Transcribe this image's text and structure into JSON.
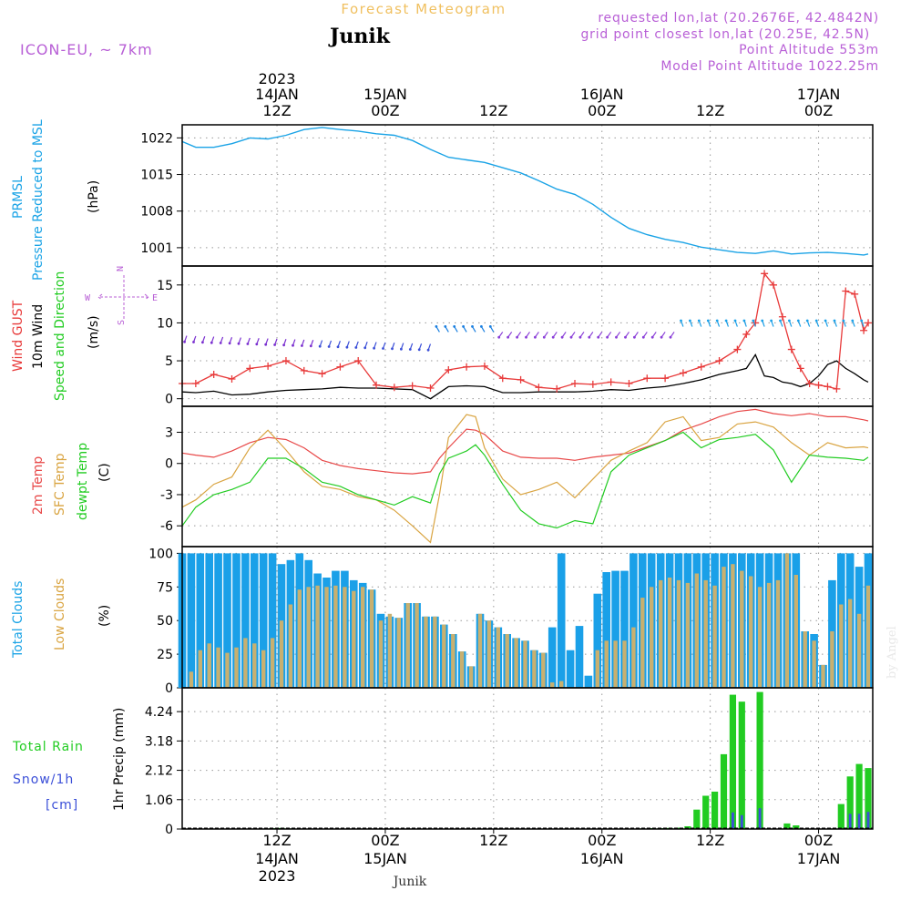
{
  "header": {
    "title": "Forecast Meteogram",
    "location": "Junik",
    "model": "ICON-EU, ~ 7km",
    "requested": "requested lon,lat (20.2676E, 42.4842N)",
    "gridpoint": "grid point closest lon,lat (20.25E, 42.5N)",
    "point_alt": "Point Altitude 553m",
    "model_alt": "Model Point Altitude 1022.25m",
    "footer_location": "Junik",
    "watermark": "by Angel"
  },
  "time_axis": {
    "top": [
      {
        "line1": "2023",
        "line2": "14JAN",
        "line3": "12Z",
        "hour": 15
      },
      {
        "line1": "",
        "line2": "15JAN",
        "line3": "00Z",
        "hour": 27
      },
      {
        "line1": "",
        "line2": "",
        "line3": "12Z",
        "hour": 39
      },
      {
        "line1": "",
        "line2": "16JAN",
        "line3": "00Z",
        "hour": 51
      },
      {
        "line1": "",
        "line2": "",
        "line3": "12Z",
        "hour": 63
      },
      {
        "line1": "",
        "line2": "17JAN",
        "line3": "00Z",
        "hour": 75
      }
    ],
    "bottom": [
      {
        "line1": "12Z",
        "line2": "14JAN",
        "line3": "2023",
        "hour": 15
      },
      {
        "line1": "00Z",
        "line2": "15JAN",
        "line3": "",
        "hour": 27
      },
      {
        "line1": "12Z",
        "line2": "",
        "line3": "",
        "hour": 39
      },
      {
        "line1": "00Z",
        "line2": "16JAN",
        "line3": "",
        "hour": 51
      },
      {
        "line1": "12Z",
        "line2": "",
        "line3": "",
        "hour": 63
      },
      {
        "line1": "00Z",
        "line2": "17JAN",
        "line3": "",
        "hour": 75
      }
    ],
    "hour_range": [
      4.5,
      81
    ]
  },
  "panels": {
    "pressure": {
      "label1": "PRMSL",
      "label2": "Pressure Reduced to MSL",
      "units": "(hPa)",
      "ticks": [
        "1022",
        "1015",
        "1008",
        "1001"
      ],
      "tick_values": [
        1022,
        1015,
        1008,
        1001
      ],
      "ylim": [
        997.5,
        1024.5
      ]
    },
    "wind": {
      "label_gust": "Wind GUST",
      "label_wind": "10m Wind",
      "label_dir": "Speed and Direction",
      "units": "(m/s)",
      "ticks": [
        "15",
        "10",
        "5",
        "0"
      ],
      "tick_values": [
        15,
        10,
        5,
        0
      ],
      "ylim": [
        -1,
        17.5
      ],
      "compass": {
        "n": "N",
        "s": "S",
        "w": "W",
        "e": "E"
      }
    },
    "temp": {
      "label_2m": "2m Temp",
      "label_sfc": "SFC Temp",
      "label_dew": "dewpt Temp",
      "units": "(C)",
      "ticks": [
        "3",
        "0",
        "-3",
        "-6"
      ],
      "tick_values": [
        3,
        0,
        -3,
        -6
      ],
      "ylim": [
        -8,
        5.5
      ]
    },
    "clouds": {
      "label_total": "Total Clouds",
      "label_low": "Low Clouds",
      "units": "(%)",
      "ticks": [
        "100",
        "75",
        "50",
        "25",
        "0"
      ],
      "tick_values": [
        100,
        75,
        50,
        25,
        0
      ],
      "ylim": [
        0,
        105
      ]
    },
    "precip": {
      "label_rain": "Total  Rain",
      "label_snow": "Snow/1h",
      "label_cm": "[cm]",
      "units": "1hr Precip (mm)",
      "ticks": [
        "4.24",
        "3.18",
        "2.12",
        "1.06",
        "0"
      ],
      "tick_values": [
        4.24,
        3.18,
        2.12,
        1.06,
        0
      ],
      "ylim": [
        0,
        5.1
      ]
    }
  },
  "colors": {
    "pressure": "#1aa3e6",
    "gust": "#e83a3a",
    "wind": "#000000",
    "t2m": "#e84848",
    "sfc": "#d9a441",
    "dew": "#22cc22",
    "total_cloud": "#1aa0e8",
    "low_cloud": "#c8b070",
    "rain": "#22cc22",
    "snow": "#3b4fd8",
    "label_purple": "#b85fd6",
    "title_gold": "#f0c060"
  },
  "chart_data": [
    {
      "type": "line",
      "title": "PRMSL",
      "ylabel": "(hPa)",
      "x": [
        4.5,
        6,
        8,
        10,
        12,
        14,
        16,
        18,
        20,
        22,
        24,
        26,
        28,
        30,
        32,
        34,
        36,
        38,
        40,
        42,
        44,
        46,
        48,
        50,
        52,
        54,
        56,
        58,
        60,
        62,
        64,
        66,
        68,
        70,
        72,
        74,
        76,
        78,
        80,
        80.5
      ],
      "series": [
        {
          "name": "PRMSL",
          "values": [
            1021.3,
            1020.2,
            1020.2,
            1020.9,
            1022,
            1021.8,
            1022.5,
            1023.6,
            1024.0,
            1023.6,
            1023.3,
            1022.8,
            1022.5,
            1021.5,
            1019.8,
            1018.3,
            1017.8,
            1017.3,
            1016.3,
            1015.3,
            1013.8,
            1012.2,
            1011.2,
            1009.3,
            1006.8,
            1004.7,
            1003.5,
            1002.6,
            1002.0,
            1001.1,
            1000.6,
            1000.1,
            999.9,
            1000.4,
            999.8,
            1000.0,
            1000.1,
            999.9,
            999.6,
            999.8
          ]
        }
      ]
    },
    {
      "type": "line",
      "title": "Wind",
      "ylabel": "(m/s)",
      "x": [
        4.5,
        6,
        8,
        10,
        12,
        14,
        16,
        18,
        20,
        22,
        24,
        26,
        28,
        30,
        32,
        34,
        36,
        38,
        40,
        42,
        44,
        46,
        48,
        50,
        52,
        54,
        56,
        58,
        60,
        62,
        64,
        66,
        67,
        68,
        69,
        70,
        71,
        72,
        73,
        74,
        75,
        76,
        77,
        78,
        79,
        80,
        80.5
      ],
      "series": [
        {
          "name": "Wind GUST",
          "values": [
            2.0,
            2.0,
            3.2,
            2.6,
            4.0,
            4.3,
            5.0,
            3.7,
            3.3,
            4.2,
            5.0,
            1.8,
            1.5,
            1.7,
            1.4,
            3.8,
            4.2,
            4.3,
            2.7,
            2.5,
            1.5,
            1.3,
            2.0,
            1.9,
            2.2,
            2.0,
            2.7,
            2.7,
            3.4,
            4.2,
            5.0,
            6.5,
            8.5,
            10.0,
            16.5,
            15.0,
            10.8,
            6.5,
            4.0,
            2.0,
            1.8,
            1.6,
            1.3,
            14.2,
            13.8,
            9.0,
            10.0
          ]
        },
        {
          "name": "10m Wind",
          "values": [
            0.9,
            0.8,
            1.0,
            0.5,
            0.6,
            0.9,
            1.1,
            1.2,
            1.3,
            1.5,
            1.4,
            1.4,
            1.3,
            1.2,
            0.0,
            1.6,
            1.7,
            1.6,
            0.8,
            0.8,
            0.9,
            0.9,
            0.9,
            1.0,
            1.2,
            1.1,
            1.4,
            1.6,
            2.0,
            2.5,
            3.2,
            3.7,
            4.0,
            5.8,
            3.0,
            2.8,
            2.2,
            2.0,
            1.6,
            2.0,
            3.0,
            4.5,
            5.0,
            4.0,
            3.3,
            2.5,
            2.2
          ]
        }
      ]
    },
    {
      "type": "line",
      "title": "Temperature",
      "ylabel": "(C)",
      "x": [
        4.5,
        6,
        8,
        10,
        12,
        14,
        16,
        18,
        20,
        22,
        24,
        26,
        28,
        30,
        32,
        33,
        34,
        36,
        37,
        38,
        40,
        42,
        44,
        46,
        48,
        50,
        52,
        54,
        56,
        58,
        60,
        62,
        64,
        66,
        68,
        70,
        72,
        74,
        76,
        78,
        80,
        80.5
      ],
      "series": [
        {
          "name": "2m Temp",
          "values": [
            1.0,
            0.8,
            0.6,
            1.2,
            2.0,
            2.5,
            2.3,
            1.5,
            0.3,
            -0.2,
            -0.5,
            -0.7,
            -0.9,
            -1.0,
            -0.8,
            0.5,
            1.5,
            3.3,
            3.2,
            2.8,
            1.2,
            0.6,
            0.5,
            0.5,
            0.3,
            0.6,
            0.8,
            1.0,
            1.6,
            2.2,
            3.2,
            3.8,
            4.5,
            5.0,
            5.2,
            4.8,
            4.6,
            4.8,
            4.5,
            4.5,
            4.2,
            4.1
          ]
        },
        {
          "name": "SFC Temp",
          "values": [
            -4.2,
            -3.5,
            -2.0,
            -1.3,
            1.5,
            3.2,
            1.3,
            -0.8,
            -2.2,
            -2.5,
            -3.2,
            -3.5,
            -4.5,
            -6.0,
            -7.6,
            -3.0,
            2.5,
            4.7,
            4.5,
            1.5,
            -1.5,
            -3.0,
            -2.5,
            -1.8,
            -3.3,
            -1.5,
            0.3,
            1.2,
            2.0,
            4.0,
            4.5,
            2.2,
            2.5,
            3.8,
            4.0,
            3.5,
            2.0,
            0.8,
            2.0,
            1.5,
            1.6,
            1.5
          ]
        },
        {
          "name": "dewpt Temp",
          "values": [
            -6.0,
            -4.2,
            -3.0,
            -2.5,
            -1.8,
            0.5,
            0.5,
            -0.5,
            -1.8,
            -2.2,
            -3.0,
            -3.5,
            -4.0,
            -3.2,
            -3.8,
            -1.0,
            0.5,
            1.2,
            1.8,
            0.8,
            -2.0,
            -4.5,
            -5.8,
            -6.2,
            -5.5,
            -5.8,
            -0.8,
            0.8,
            1.5,
            2.2,
            3.0,
            1.5,
            2.3,
            2.5,
            2.8,
            1.3,
            -1.8,
            0.8,
            0.6,
            0.5,
            0.3,
            0.6
          ]
        }
      ]
    },
    {
      "type": "bar",
      "title": "Clouds",
      "ylabel": "(%)",
      "x": [
        4.5,
        5.5,
        6.5,
        7.5,
        8.5,
        9.5,
        10.5,
        11.5,
        12.5,
        13.5,
        14.5,
        15.5,
        16.5,
        17.5,
        18.5,
        19.5,
        20.5,
        21.5,
        22.5,
        23.5,
        24.5,
        25.5,
        26.5,
        27.5,
        28.5,
        29.5,
        30.5,
        31.5,
        32.5,
        33.5,
        34.5,
        35.5,
        36.5,
        37.5,
        38.5,
        39.5,
        40.5,
        41.5,
        42.5,
        43.5,
        44.5,
        45.5,
        46.5,
        47.5,
        48.5,
        49.5,
        50.5,
        51.5,
        52.5,
        53.5,
        54.5,
        55.5,
        56.5,
        57.5,
        58.5,
        59.5,
        60.5,
        61.5,
        62.5,
        63.5,
        64.5,
        65.5,
        66.5,
        67.5,
        68.5,
        69.5,
        70.5,
        71.5,
        72.5,
        73.5,
        74.5,
        75.5,
        76.5,
        77.5,
        78.5,
        79.5,
        80.5
      ],
      "series": [
        {
          "name": "Total Clouds",
          "values": [
            100,
            100,
            100,
            100,
            100,
            100,
            100,
            100,
            100,
            100,
            100,
            92,
            95,
            100,
            95,
            85,
            82,
            87,
            87,
            80,
            78,
            73,
            55,
            53,
            52,
            63,
            63,
            53,
            53,
            47,
            40,
            27,
            16,
            55,
            50,
            45,
            40,
            37,
            35,
            28,
            26,
            45,
            100,
            28,
            46,
            9,
            70,
            86,
            87,
            87,
            100,
            100,
            100,
            100,
            100,
            100,
            100,
            100,
            100,
            100,
            100,
            100,
            100,
            100,
            100,
            100,
            100,
            100,
            100,
            42,
            40,
            17,
            80,
            100,
            100,
            90,
            100
          ]
        },
        {
          "name": "Low Clouds",
          "values": [
            0,
            12,
            28,
            33,
            30,
            26,
            30,
            37,
            33,
            28,
            37,
            50,
            62,
            73,
            75,
            76,
            75,
            76,
            75,
            72,
            75,
            73,
            50,
            55,
            52,
            63,
            63,
            53,
            53,
            47,
            40,
            27,
            16,
            55,
            50,
            45,
            40,
            37,
            35,
            28,
            26,
            4,
            5,
            0,
            0,
            0,
            28,
            35,
            35,
            35,
            45,
            67,
            75,
            80,
            82,
            80,
            78,
            85,
            80,
            76,
            90,
            92,
            87,
            83,
            75,
            78,
            80,
            100,
            84,
            42,
            35,
            17,
            42,
            62,
            66,
            55,
            76
          ]
        }
      ]
    },
    {
      "type": "bar",
      "title": "1hr Precip",
      "ylabel": "1hr Precip (mm)",
      "x": [
        4.5,
        5.5,
        6.5,
        7.5,
        8.5,
        9.5,
        10.5,
        11.5,
        12.5,
        13.5,
        14.5,
        15.5,
        16.5,
        17.5,
        18.5,
        19.5,
        20.5,
        21.5,
        22.5,
        23.5,
        24.5,
        25.5,
        26.5,
        27.5,
        28.5,
        29.5,
        30.5,
        31.5,
        32.5,
        33.5,
        34.5,
        35.5,
        36.5,
        37.5,
        38.5,
        39.5,
        40.5,
        41.5,
        42.5,
        43.5,
        44.5,
        45.5,
        46.5,
        47.5,
        48.5,
        49.5,
        50.5,
        51.5,
        52.5,
        53.5,
        54.5,
        55.5,
        56.5,
        57.5,
        58.5,
        59.5,
        60.5,
        61.5,
        62.5,
        63.5,
        64.5,
        65.5,
        66.5,
        67.5,
        68.5,
        69.5,
        70.5,
        71.5,
        72.5,
        73.5,
        74.5,
        75.5,
        76.5,
        77.5,
        78.5,
        79.5,
        80.5
      ],
      "series": [
        {
          "name": "Total Rain",
          "values": [
            0,
            0,
            0,
            0,
            0,
            0,
            0,
            0,
            0,
            0,
            0.03,
            0.04,
            0.02,
            0,
            0,
            0,
            0,
            0,
            0,
            0,
            0,
            0,
            0,
            0,
            0,
            0,
            0,
            0,
            0,
            0,
            0,
            0,
            0,
            0,
            0,
            0,
            0,
            0,
            0,
            0,
            0,
            0,
            0,
            0,
            0,
            0,
            0,
            0,
            0,
            0,
            0,
            0.02,
            0.03,
            0.03,
            0.04,
            0.05,
            0.1,
            0.7,
            1.2,
            1.35,
            2.7,
            4.85,
            4.6,
            0,
            4.95,
            0,
            0,
            0.2,
            0.13,
            0,
            0,
            0,
            0,
            0.9,
            1.9,
            2.35,
            2.2
          ]
        },
        {
          "name": "Snow/1h",
          "values": [
            0,
            0,
            0,
            0,
            0,
            0,
            0,
            0,
            0,
            0,
            0,
            0,
            0,
            0,
            0,
            0,
            0,
            0,
            0,
            0,
            0,
            0,
            0,
            0,
            0,
            0,
            0,
            0,
            0,
            0,
            0,
            0,
            0,
            0,
            0,
            0,
            0,
            0,
            0,
            0,
            0,
            0,
            0,
            0,
            0,
            0,
            0,
            0,
            0,
            0,
            0,
            0,
            0,
            0,
            0,
            0,
            0,
            0,
            0,
            0,
            0,
            0.6,
            0.5,
            0,
            0.75,
            0,
            0,
            0,
            0,
            0,
            0,
            0,
            0,
            0,
            0.55,
            0.55,
            0.62
          ]
        }
      ]
    }
  ]
}
